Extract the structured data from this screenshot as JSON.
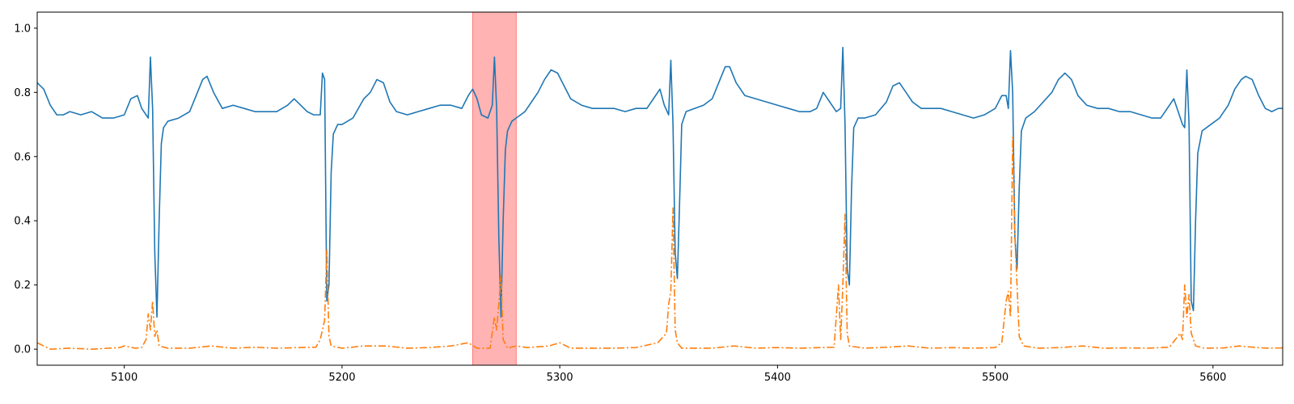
{
  "chart_data": {
    "type": "line",
    "title": "",
    "xlabel": "",
    "ylabel": "",
    "xlim": [
      5060,
      5632
    ],
    "ylim": [
      -0.05,
      1.05
    ],
    "grid": false,
    "x_ticks": [
      5100,
      5200,
      5300,
      5400,
      5500,
      5600
    ],
    "y_ticks": [
      0.0,
      0.2,
      0.4,
      0.6,
      0.8,
      1.0
    ],
    "highlight_span": {
      "x_start": 5260,
      "x_end": 5280,
      "color": "#ff9999"
    },
    "baseline": [
      [
        5060,
        0.83
      ],
      [
        5063,
        0.81
      ],
      [
        5066,
        0.76
      ],
      [
        5069,
        0.73
      ],
      [
        5072,
        0.73
      ],
      [
        5075,
        0.74
      ],
      [
        5080,
        0.73
      ],
      [
        5085,
        0.74
      ],
      [
        5090,
        0.72
      ],
      [
        5095,
        0.72
      ],
      [
        5100,
        0.73
      ],
      [
        5103,
        0.78
      ],
      [
        5106,
        0.79
      ],
      [
        5108,
        0.75
      ],
      [
        5110,
        0.73
      ],
      [
        5111,
        0.72
      ],
      [
        5112,
        0.91
      ],
      [
        5113,
        0.75
      ],
      [
        5114,
        0.3
      ],
      [
        5115,
        0.1
      ],
      [
        5116,
        0.4
      ],
      [
        5117,
        0.64
      ],
      [
        5118,
        0.69
      ],
      [
        5120,
        0.71
      ],
      [
        5125,
        0.72
      ],
      [
        5130,
        0.74
      ],
      [
        5133,
        0.79
      ],
      [
        5136,
        0.84
      ],
      [
        5138,
        0.85
      ],
      [
        5141,
        0.8
      ],
      [
        5145,
        0.75
      ],
      [
        5150,
        0.76
      ],
      [
        5155,
        0.75
      ],
      [
        5160,
        0.74
      ],
      [
        5165,
        0.74
      ],
      [
        5170,
        0.74
      ],
      [
        5175,
        0.76
      ],
      [
        5178,
        0.78
      ],
      [
        5181,
        0.76
      ],
      [
        5184,
        0.74
      ],
      [
        5187,
        0.73
      ],
      [
        5190,
        0.73
      ],
      [
        5191,
        0.86
      ],
      [
        5192,
        0.84
      ],
      [
        5193,
        0.15
      ],
      [
        5194,
        0.2
      ],
      [
        5195,
        0.55
      ],
      [
        5196,
        0.67
      ],
      [
        5198,
        0.7
      ],
      [
        5200,
        0.7
      ],
      [
        5205,
        0.72
      ],
      [
        5210,
        0.78
      ],
      [
        5213,
        0.8
      ],
      [
        5216,
        0.84
      ],
      [
        5219,
        0.83
      ],
      [
        5222,
        0.77
      ],
      [
        5225,
        0.74
      ],
      [
        5230,
        0.73
      ],
      [
        5235,
        0.74
      ],
      [
        5240,
        0.75
      ],
      [
        5245,
        0.76
      ],
      [
        5250,
        0.76
      ],
      [
        5255,
        0.75
      ],
      [
        5258,
        0.79
      ],
      [
        5260,
        0.81
      ],
      [
        5262,
        0.78
      ],
      [
        5264,
        0.73
      ],
      [
        5267,
        0.72
      ],
      [
        5269,
        0.76
      ],
      [
        5270,
        0.91
      ],
      [
        5271,
        0.75
      ],
      [
        5272,
        0.35
      ],
      [
        5273,
        0.1
      ],
      [
        5274,
        0.4
      ],
      [
        5275,
        0.62
      ],
      [
        5276,
        0.68
      ],
      [
        5278,
        0.71
      ],
      [
        5280,
        0.72
      ],
      [
        5284,
        0.74
      ],
      [
        5287,
        0.77
      ],
      [
        5290,
        0.8
      ],
      [
        5293,
        0.84
      ],
      [
        5296,
        0.87
      ],
      [
        5299,
        0.86
      ],
      [
        5302,
        0.82
      ],
      [
        5305,
        0.78
      ],
      [
        5310,
        0.76
      ],
      [
        5315,
        0.75
      ],
      [
        5320,
        0.75
      ],
      [
        5325,
        0.75
      ],
      [
        5330,
        0.74
      ],
      [
        5335,
        0.75
      ],
      [
        5340,
        0.75
      ],
      [
        5343,
        0.78
      ],
      [
        5346,
        0.81
      ],
      [
        5348,
        0.76
      ],
      [
        5350,
        0.73
      ],
      [
        5351,
        0.9
      ],
      [
        5352,
        0.7
      ],
      [
        5353,
        0.3
      ],
      [
        5354,
        0.22
      ],
      [
        5355,
        0.45
      ],
      [
        5356,
        0.7
      ],
      [
        5358,
        0.74
      ],
      [
        5362,
        0.75
      ],
      [
        5366,
        0.76
      ],
      [
        5370,
        0.78
      ],
      [
        5373,
        0.83
      ],
      [
        5376,
        0.88
      ],
      [
        5378,
        0.88
      ],
      [
        5381,
        0.83
      ],
      [
        5385,
        0.79
      ],
      [
        5390,
        0.78
      ],
      [
        5395,
        0.77
      ],
      [
        5400,
        0.76
      ],
      [
        5405,
        0.75
      ],
      [
        5410,
        0.74
      ],
      [
        5415,
        0.74
      ],
      [
        5418,
        0.75
      ],
      [
        5421,
        0.8
      ],
      [
        5424,
        0.77
      ],
      [
        5427,
        0.74
      ],
      [
        5429,
        0.75
      ],
      [
        5430,
        0.94
      ],
      [
        5431,
        0.7
      ],
      [
        5432,
        0.25
      ],
      [
        5433,
        0.2
      ],
      [
        5434,
        0.5
      ],
      [
        5435,
        0.69
      ],
      [
        5437,
        0.72
      ],
      [
        5440,
        0.72
      ],
      [
        5445,
        0.73
      ],
      [
        5450,
        0.77
      ],
      [
        5453,
        0.82
      ],
      [
        5456,
        0.83
      ],
      [
        5459,
        0.8
      ],
      [
        5462,
        0.77
      ],
      [
        5466,
        0.75
      ],
      [
        5470,
        0.75
      ],
      [
        5475,
        0.75
      ],
      [
        5480,
        0.74
      ],
      [
        5485,
        0.73
      ],
      [
        5490,
        0.72
      ],
      [
        5495,
        0.73
      ],
      [
        5500,
        0.75
      ],
      [
        5503,
        0.79
      ],
      [
        5505,
        0.79
      ],
      [
        5506,
        0.75
      ],
      [
        5507,
        0.93
      ],
      [
        5508,
        0.8
      ],
      [
        5509,
        0.35
      ],
      [
        5510,
        0.25
      ],
      [
        5511,
        0.5
      ],
      [
        5512,
        0.68
      ],
      [
        5514,
        0.72
      ],
      [
        5518,
        0.74
      ],
      [
        5522,
        0.77
      ],
      [
        5526,
        0.8
      ],
      [
        5529,
        0.84
      ],
      [
        5532,
        0.86
      ],
      [
        5535,
        0.84
      ],
      [
        5538,
        0.79
      ],
      [
        5542,
        0.76
      ],
      [
        5547,
        0.75
      ],
      [
        5552,
        0.75
      ],
      [
        5557,
        0.74
      ],
      [
        5562,
        0.74
      ],
      [
        5567,
        0.73
      ],
      [
        5572,
        0.72
      ],
      [
        5576,
        0.72
      ],
      [
        5579,
        0.75
      ],
      [
        5582,
        0.78
      ],
      [
        5584,
        0.74
      ],
      [
        5586,
        0.7
      ],
      [
        5587,
        0.69
      ],
      [
        5588,
        0.87
      ],
      [
        5589,
        0.7
      ],
      [
        5590,
        0.15
      ],
      [
        5591,
        0.12
      ],
      [
        5592,
        0.4
      ],
      [
        5593,
        0.61
      ],
      [
        5595,
        0.68
      ],
      [
        5599,
        0.7
      ],
      [
        5603,
        0.72
      ],
      [
        5607,
        0.76
      ],
      [
        5610,
        0.81
      ],
      [
        5613,
        0.84
      ],
      [
        5615,
        0.85
      ],
      [
        5618,
        0.84
      ],
      [
        5621,
        0.79
      ],
      [
        5624,
        0.75
      ],
      [
        5627,
        0.74
      ],
      [
        5630,
        0.75
      ],
      [
        5632,
        0.75
      ]
    ],
    "spikes": [
      [
        5060,
        0.02
      ],
      [
        5063,
        0.01
      ],
      [
        5066,
        0.0
      ],
      [
        5075,
        0.003
      ],
      [
        5085,
        0.0
      ],
      [
        5098,
        0.005
      ],
      [
        5100,
        0.01
      ],
      [
        5105,
        0.003
      ],
      [
        5108,
        0.005
      ],
      [
        5110,
        0.03
      ],
      [
        5111,
        0.11
      ],
      [
        5112,
        0.06
      ],
      [
        5113,
        0.15
      ],
      [
        5114,
        0.04
      ],
      [
        5115,
        0.06
      ],
      [
        5116,
        0.01
      ],
      [
        5120,
        0.003
      ],
      [
        5130,
        0.003
      ],
      [
        5140,
        0.01
      ],
      [
        5150,
        0.003
      ],
      [
        5160,
        0.006
      ],
      [
        5170,
        0.003
      ],
      [
        5180,
        0.005
      ],
      [
        5188,
        0.006
      ],
      [
        5190,
        0.03
      ],
      [
        5192,
        0.09
      ],
      [
        5193,
        0.31
      ],
      [
        5194,
        0.04
      ],
      [
        5195,
        0.01
      ],
      [
        5200,
        0.003
      ],
      [
        5210,
        0.01
      ],
      [
        5220,
        0.01
      ],
      [
        5230,
        0.003
      ],
      [
        5240,
        0.005
      ],
      [
        5250,
        0.01
      ],
      [
        5258,
        0.02
      ],
      [
        5262,
        0.003
      ],
      [
        5268,
        0.003
      ],
      [
        5270,
        0.1
      ],
      [
        5271,
        0.06
      ],
      [
        5272,
        0.14
      ],
      [
        5273,
        0.23
      ],
      [
        5274,
        0.03
      ],
      [
        5276,
        0.003
      ],
      [
        5280,
        0.01
      ],
      [
        5285,
        0.005
      ],
      [
        5295,
        0.01
      ],
      [
        5300,
        0.02
      ],
      [
        5305,
        0.003
      ],
      [
        5315,
        0.003
      ],
      [
        5325,
        0.003
      ],
      [
        5335,
        0.005
      ],
      [
        5345,
        0.02
      ],
      [
        5349,
        0.05
      ],
      [
        5350,
        0.14
      ],
      [
        5351,
        0.18
      ],
      [
        5352,
        0.44
      ],
      [
        5353,
        0.06
      ],
      [
        5354,
        0.02
      ],
      [
        5356,
        0.003
      ],
      [
        5370,
        0.003
      ],
      [
        5380,
        0.01
      ],
      [
        5390,
        0.003
      ],
      [
        5400,
        0.005
      ],
      [
        5410,
        0.003
      ],
      [
        5420,
        0.005
      ],
      [
        5426,
        0.006
      ],
      [
        5428,
        0.2
      ],
      [
        5429,
        0.03
      ],
      [
        5430,
        0.2
      ],
      [
        5431,
        0.42
      ],
      [
        5432,
        0.05
      ],
      [
        5433,
        0.01
      ],
      [
        5440,
        0.003
      ],
      [
        5450,
        0.006
      ],
      [
        5460,
        0.01
      ],
      [
        5470,
        0.003
      ],
      [
        5480,
        0.005
      ],
      [
        5490,
        0.003
      ],
      [
        5500,
        0.005
      ],
      [
        5503,
        0.02
      ],
      [
        5505,
        0.15
      ],
      [
        5506,
        0.18
      ],
      [
        5507,
        0.1
      ],
      [
        5508,
        0.66
      ],
      [
        5509,
        0.35
      ],
      [
        5510,
        0.2
      ],
      [
        5511,
        0.04
      ],
      [
        5513,
        0.01
      ],
      [
        5520,
        0.003
      ],
      [
        5530,
        0.005
      ],
      [
        5540,
        0.01
      ],
      [
        5550,
        0.003
      ],
      [
        5560,
        0.004
      ],
      [
        5570,
        0.003
      ],
      [
        5580,
        0.006
      ],
      [
        5585,
        0.05
      ],
      [
        5586,
        0.03
      ],
      [
        5587,
        0.2
      ],
      [
        5588,
        0.1
      ],
      [
        5589,
        0.17
      ],
      [
        5590,
        0.05
      ],
      [
        5592,
        0.01
      ],
      [
        5596,
        0.003
      ],
      [
        5605,
        0.004
      ],
      [
        5612,
        0.01
      ],
      [
        5620,
        0.005
      ],
      [
        5625,
        0.003
      ],
      [
        5632,
        0.004
      ]
    ],
    "series": [
      {
        "values_key": "baseline",
        "color": "#1f77b4",
        "style": "solid"
      },
      {
        "values_key": "spikes",
        "color": "#ff7f0e",
        "style": "dashdot"
      }
    ]
  }
}
